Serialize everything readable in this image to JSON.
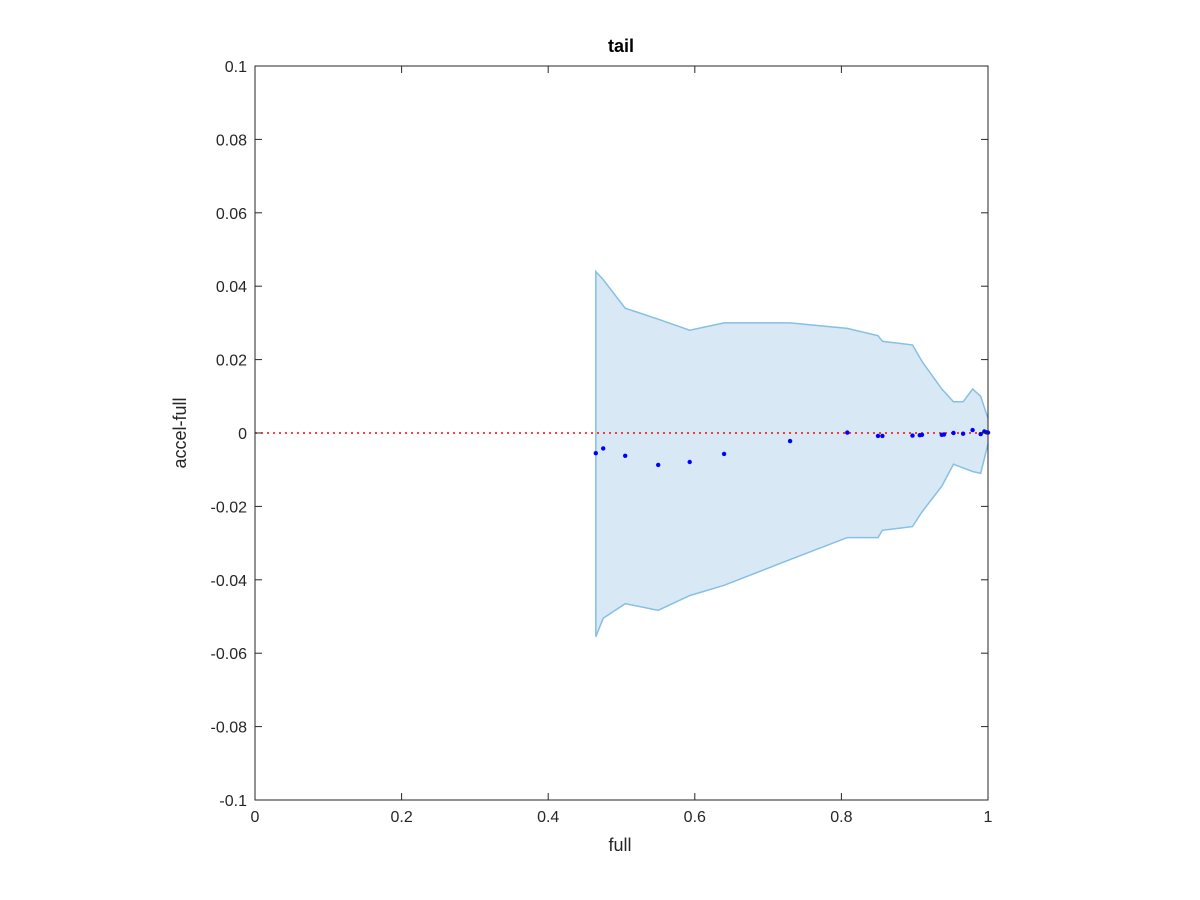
{
  "chart_data": {
    "type": "scatter",
    "title": "tail",
    "xlabel": "full",
    "ylabel": "accel-full",
    "xlim": [
      0,
      1
    ],
    "ylim": [
      -0.1,
      0.1
    ],
    "xticks": [
      "0",
      "0.2",
      "0.4",
      "0.6",
      "0.8",
      "1"
    ],
    "yticks": [
      "0.1",
      "0.08",
      "0.06",
      "0.04",
      "0.02",
      "0",
      "-0.02",
      "-0.04",
      "-0.06",
      "-0.08",
      "-0.1"
    ],
    "grid": false,
    "colors": {
      "band_fill": "#d8e8f4",
      "band_edge": "#86c0e4",
      "points": "#0000ff",
      "reference_line": "#ff0000",
      "axes": "#262626"
    },
    "reference_line": {
      "y": 0,
      "style": "dotted"
    },
    "band": {
      "upper": [
        [
          0.465,
          0.044
        ],
        [
          0.475,
          0.0418
        ],
        [
          0.505,
          0.034
        ],
        [
          0.55,
          0.031
        ],
        [
          0.593,
          0.028
        ],
        [
          0.64,
          0.03
        ],
        [
          0.73,
          0.03
        ],
        [
          0.808,
          0.0285
        ],
        [
          0.85,
          0.0265
        ],
        [
          0.856,
          0.025
        ],
        [
          0.897,
          0.024
        ],
        [
          0.91,
          0.0195
        ],
        [
          0.937,
          0.012
        ],
        [
          0.953,
          0.0085
        ],
        [
          0.966,
          0.0085
        ],
        [
          0.979,
          0.012
        ],
        [
          0.99,
          0.01
        ],
        [
          0.995,
          0.007
        ],
        [
          1.0,
          0.004
        ]
      ],
      "lower": [
        [
          0.465,
          -0.0555
        ],
        [
          0.475,
          -0.0505
        ],
        [
          0.505,
          -0.0465
        ],
        [
          0.55,
          -0.0483
        ],
        [
          0.593,
          -0.0443
        ],
        [
          0.64,
          -0.0415
        ],
        [
          0.73,
          -0.0345
        ],
        [
          0.808,
          -0.0285
        ],
        [
          0.85,
          -0.0285
        ],
        [
          0.856,
          -0.0265
        ],
        [
          0.897,
          -0.0255
        ],
        [
          0.91,
          -0.0215
        ],
        [
          0.937,
          -0.0145
        ],
        [
          0.953,
          -0.0085
        ],
        [
          0.966,
          -0.0095
        ],
        [
          0.979,
          -0.0105
        ],
        [
          0.99,
          -0.011
        ],
        [
          0.995,
          -0.007
        ],
        [
          1.0,
          -0.003
        ]
      ]
    },
    "points": [
      [
        0.465,
        -0.0055
      ],
      [
        0.475,
        -0.0042
      ],
      [
        0.505,
        -0.0062
      ],
      [
        0.55,
        -0.0087
      ],
      [
        0.593,
        -0.0079
      ],
      [
        0.64,
        -0.0057
      ],
      [
        0.73,
        -0.0022
      ],
      [
        0.808,
        0.0001
      ],
      [
        0.85,
        -0.0008
      ],
      [
        0.856,
        -0.0008
      ],
      [
        0.897,
        -0.0007
      ],
      [
        0.907,
        -0.0006
      ],
      [
        0.91,
        -0.0005
      ],
      [
        0.937,
        -0.0005
      ],
      [
        0.94,
        -0.0004
      ],
      [
        0.953,
        0.0
      ],
      [
        0.966,
        -0.0002
      ],
      [
        0.979,
        0.0008
      ],
      [
        0.99,
        -0.0003
      ],
      [
        0.995,
        0.0004
      ],
      [
        0.998,
        0.0002
      ],
      [
        1.0,
        0.0001
      ]
    ]
  }
}
